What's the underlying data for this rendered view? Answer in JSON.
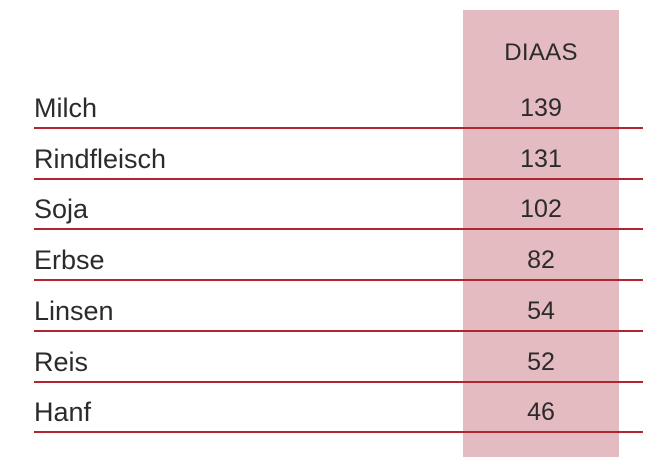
{
  "chart_data": {
    "type": "table",
    "columns": [
      "",
      "DIAAS"
    ],
    "categories": [
      "Milch",
      "Rindfleisch",
      "Soja",
      "Erbse",
      "Linsen",
      "Reis",
      "Hanf"
    ],
    "values": [
      139,
      131,
      102,
      82,
      54,
      52,
      46
    ],
    "header_label": "DIAAS",
    "colors": {
      "highlight_column": "#e3bbc1",
      "divider": "#b0252f",
      "text": "#2b2b2b"
    }
  }
}
